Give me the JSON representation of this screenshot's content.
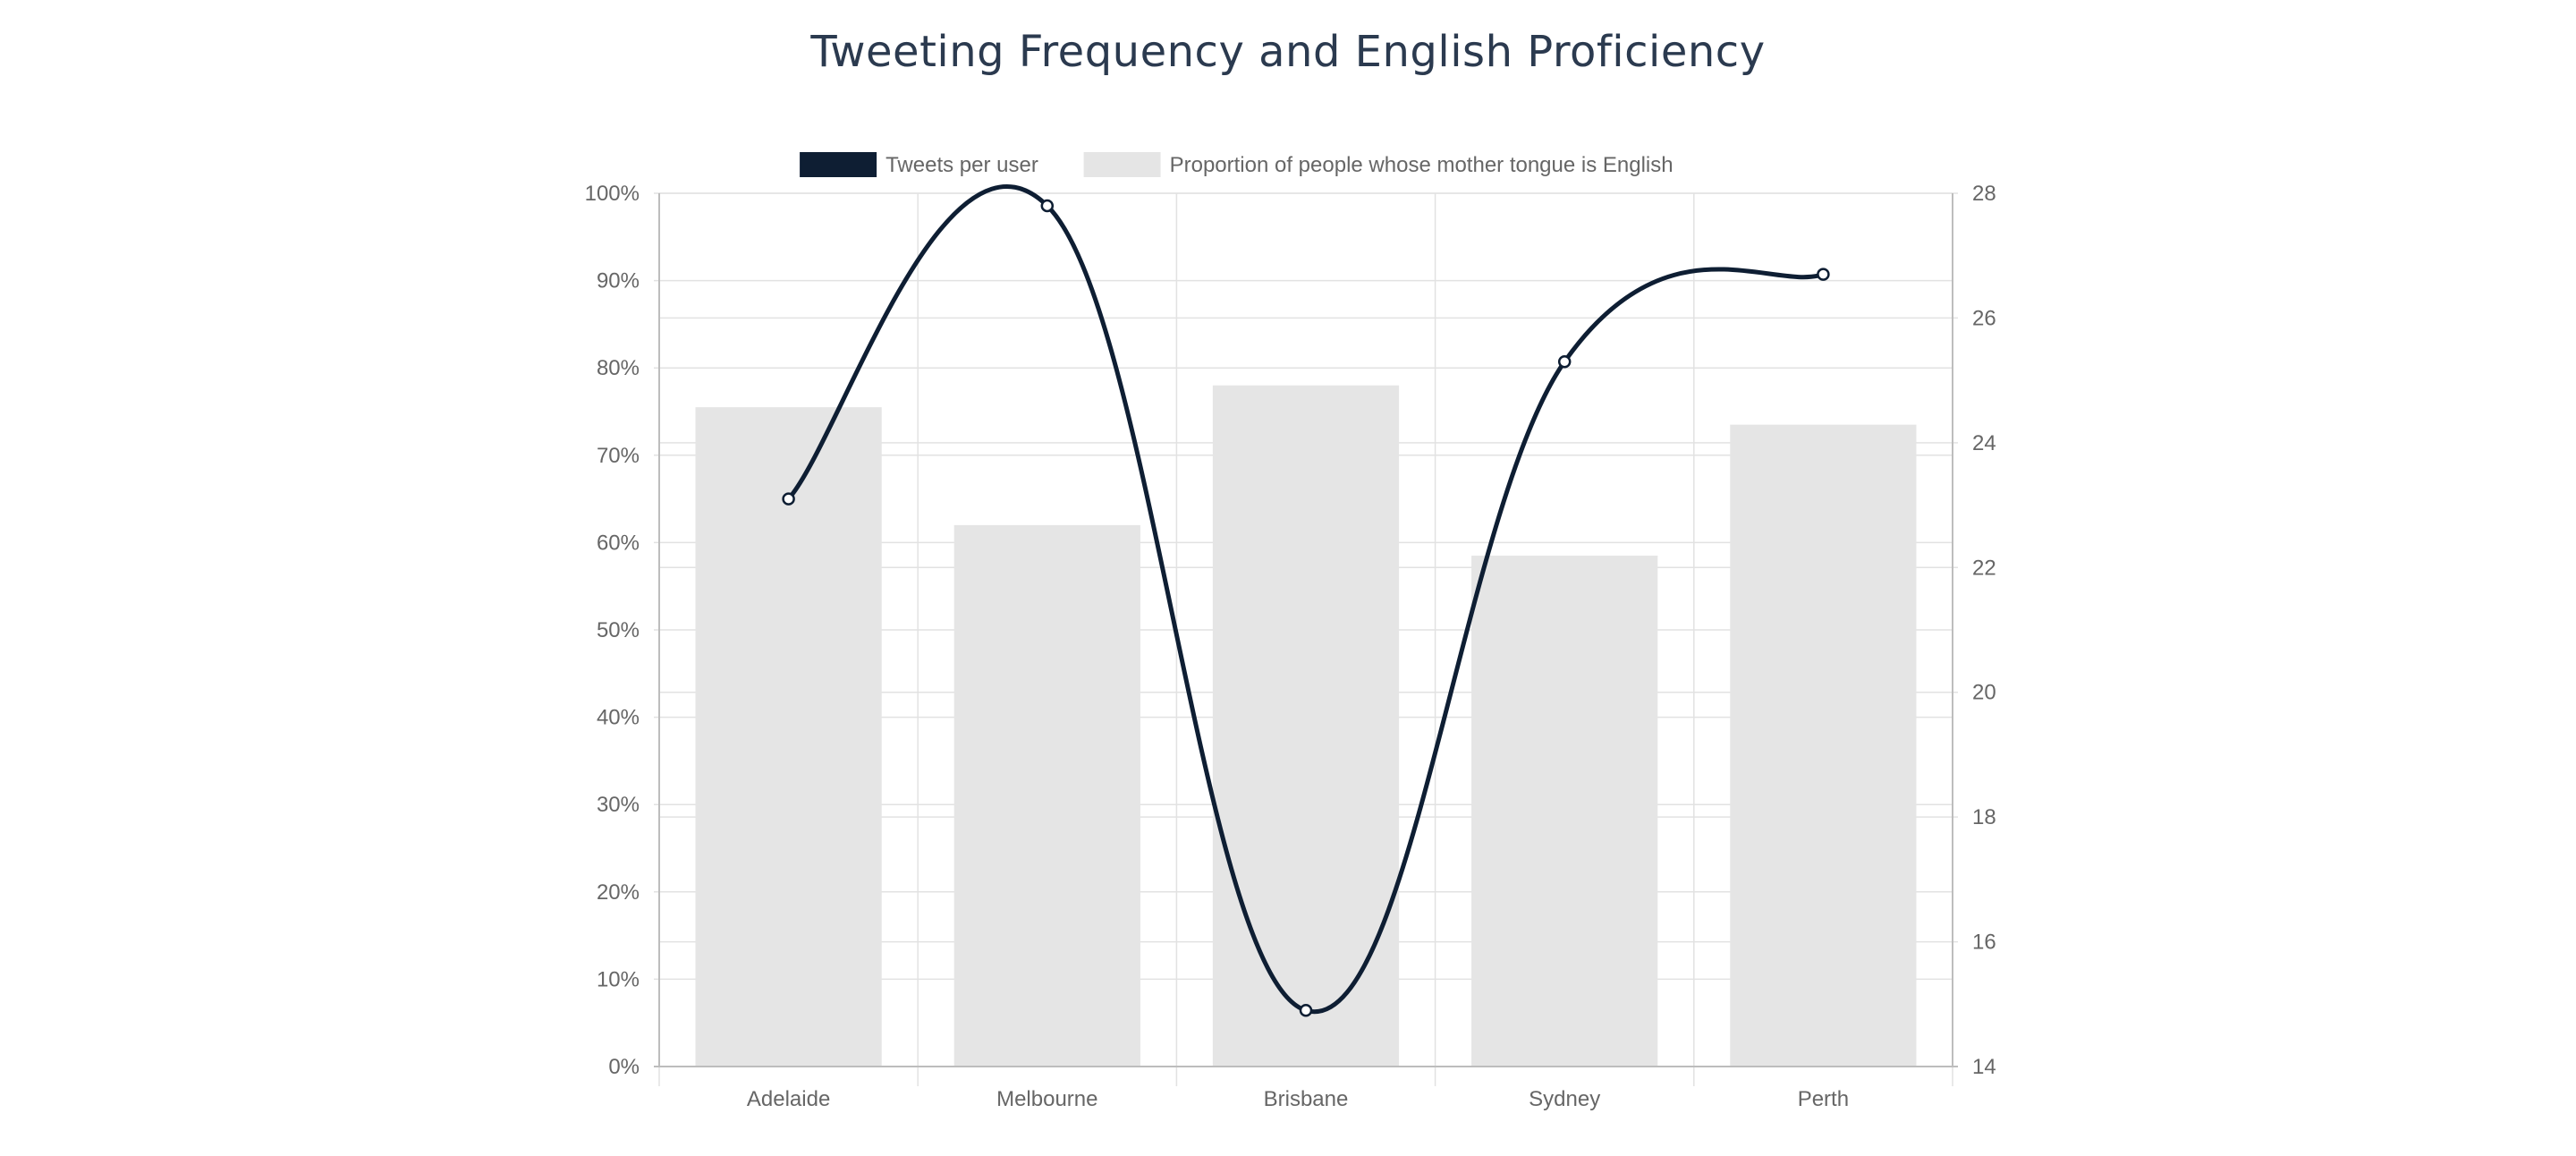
{
  "chart_data": {
    "type": "bar",
    "title": "Tweeting Frequency and English Proficiency",
    "categories": [
      "Adelaide",
      "Melbourne",
      "Brisbane",
      "Sydney",
      "Perth"
    ],
    "series": [
      {
        "name": "Tweets per user",
        "type": "line",
        "axis": "right",
        "color": "#0e1e33",
        "values": [
          23.1,
          27.8,
          14.9,
          25.3,
          26.7
        ]
      },
      {
        "name": "Proportion of people whose mother tongue is English",
        "type": "bar",
        "axis": "left",
        "color": "#e5e5e5",
        "values": [
          75.5,
          62.0,
          78.0,
          58.5,
          73.5
        ]
      }
    ],
    "y_left": {
      "min": 0,
      "max": 100,
      "ticks": [
        "0%",
        "10%",
        "20%",
        "30%",
        "40%",
        "50%",
        "60%",
        "70%",
        "80%",
        "90%",
        "100%"
      ]
    },
    "y_right": {
      "min": 14,
      "max": 28,
      "ticks": [
        "14",
        "16",
        "18",
        "20",
        "22",
        "24",
        "26",
        "28"
      ]
    },
    "grid": true,
    "legend_position": "top"
  }
}
